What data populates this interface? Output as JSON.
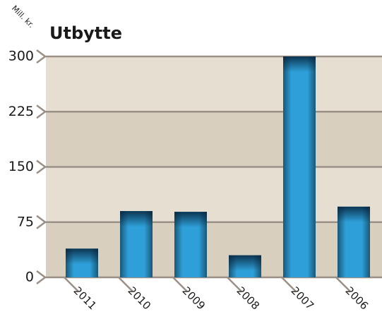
{
  "chart_data": {
    "type": "bar",
    "title": "Utbytte",
    "y_label": "Mill. kr.",
    "categories": [
      "2011",
      "2010",
      "2009",
      "2008",
      "2007",
      "2006"
    ],
    "values": [
      39,
      90,
      89,
      30,
      300,
      96
    ],
    "color": "#2e9fd8",
    "ylim": [
      0,
      300
    ],
    "yticks": [
      0,
      75,
      150,
      225,
      300
    ],
    "grid": true
  }
}
